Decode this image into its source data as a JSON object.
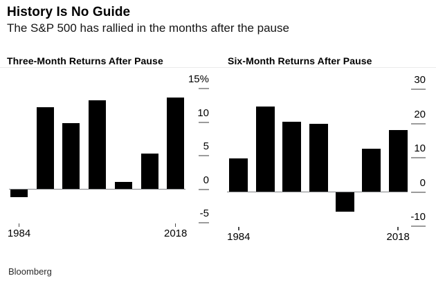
{
  "header": {
    "title": "History Is No Guide",
    "subtitle": "The S&P 500 has rallied in the months after the pause"
  },
  "footer": {
    "source": "Bloomberg"
  },
  "colors": {
    "bar": "#000000",
    "zero_line": "#7f8184",
    "axis_tick": "#9b9b9b",
    "text": "#000000"
  },
  "chart_data": [
    {
      "type": "bar",
      "title": "Three-Month Returns After Pause",
      "unit": "%",
      "values": [
        -1.2,
        12.2,
        9.9,
        13.3,
        1.1,
        5.3,
        13.7
      ],
      "x_ticks": [
        {
          "index": 0,
          "label": "1984"
        },
        {
          "index": 6,
          "label": "2018"
        }
      ],
      "y_ticks": [
        {
          "value": 15,
          "label": "15%"
        },
        {
          "value": 10,
          "label": "10"
        },
        {
          "value": 5,
          "label": "5"
        },
        {
          "value": 0,
          "label": "0"
        },
        {
          "value": -5,
          "label": "-5"
        }
      ],
      "ylim": [
        -5,
        15
      ],
      "grid": false,
      "legend": "none",
      "y_axis_side": "right"
    },
    {
      "type": "bar",
      "title": "Six-Month Returns After Pause",
      "unit": "%",
      "values": [
        9.8,
        24.9,
        20.6,
        20.0,
        -5.7,
        12.6,
        18.1
      ],
      "x_ticks": [
        {
          "index": 0,
          "label": "1984"
        },
        {
          "index": 6,
          "label": "2018"
        }
      ],
      "y_ticks": [
        {
          "value": 30,
          "label": "30"
        },
        {
          "value": 20,
          "label": "20"
        },
        {
          "value": 10,
          "label": "10"
        },
        {
          "value": 0,
          "label": "0"
        },
        {
          "value": -10,
          "label": "-10"
        }
      ],
      "ylim": [
        -10,
        30
      ],
      "grid": false,
      "legend": "none",
      "y_axis_side": "right"
    }
  ]
}
